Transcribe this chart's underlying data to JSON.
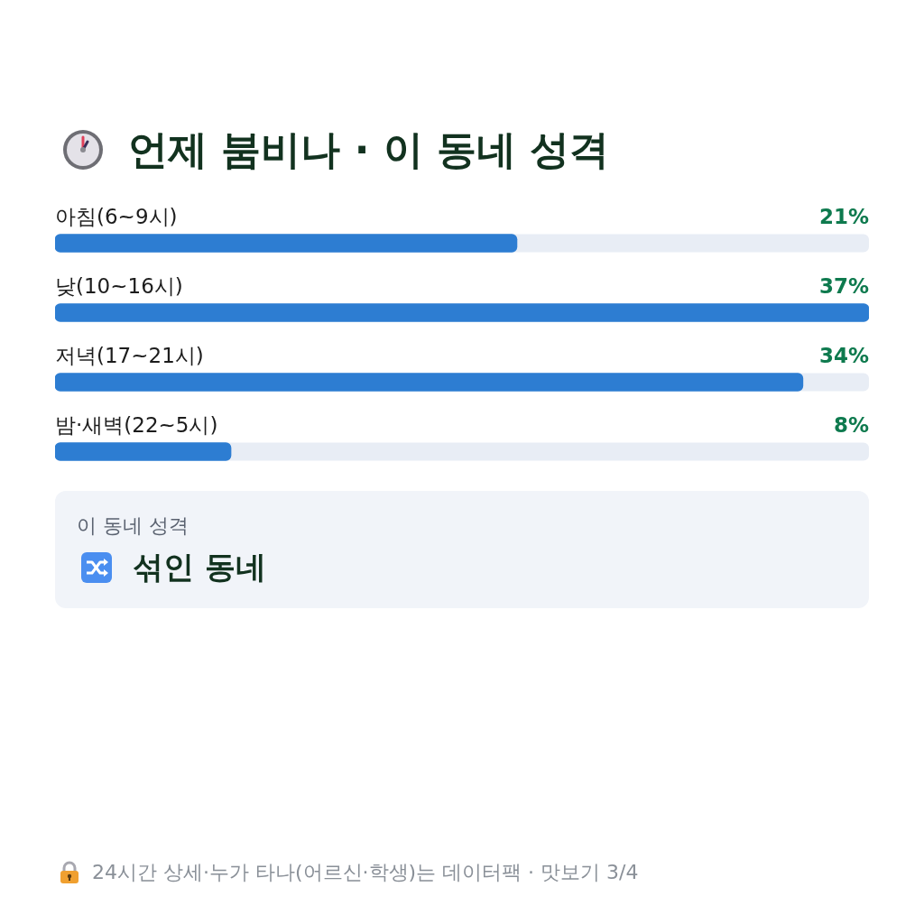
{
  "chart_data": {
    "type": "bar",
    "orientation": "horizontal",
    "title": "언제 붐비나 · 이 동네 성격",
    "categories": [
      "아침(6~9시)",
      "낮(10~16시)",
      "저녁(17~21시)",
      "밤·새벽(22~5시)"
    ],
    "values": [
      21,
      37,
      34,
      8
    ],
    "value_labels": [
      "21%",
      "37%",
      "34%",
      "8%"
    ],
    "color": "#2d7dd2",
    "xlim": [
      0,
      37
    ],
    "legend": false,
    "tick_labels": "y",
    "annotations": [
      "이 동네 성격",
      "섞인 동네",
      "24시간 상세·누가 타나(어르신·학생)는 데이터팩 · 맛보기 3/4"
    ]
  }
}
